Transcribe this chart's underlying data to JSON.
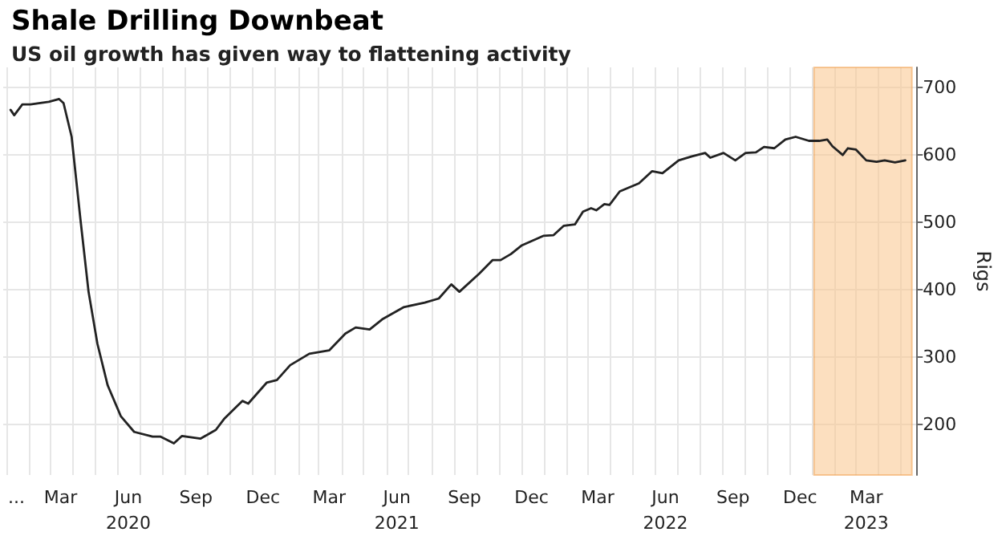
{
  "chart_data": {
    "type": "line",
    "title": "Shale Drilling Downbeat",
    "subtitle": "US oil growth has given way to flattening activity",
    "ylabel": "Rigs",
    "x": [
      "2020-01-07",
      "2020-01-12",
      "2020-01-23",
      "2020-02-03",
      "2020-02-28",
      "2020-03-13",
      "2020-03-19",
      "2020-03-30",
      "2020-04-11",
      "2020-04-22",
      "2020-05-04",
      "2020-05-18",
      "2020-06-05",
      "2020-06-23",
      "2020-07-18",
      "2020-07-29",
      "2020-08-16",
      "2020-08-27",
      "2020-09-21",
      "2020-10-12",
      "2020-10-23",
      "2020-11-17",
      "2020-11-25",
      "2020-12-20",
      "2021-01-03",
      "2021-01-21",
      "2021-02-16",
      "2021-03-15",
      "2021-04-06",
      "2021-04-20",
      "2021-05-09",
      "2021-05-26",
      "2021-06-24",
      "2021-07-23",
      "2021-08-11",
      "2021-08-28",
      "2021-09-08",
      "2021-10-05",
      "2021-10-23",
      "2021-11-03",
      "2021-11-17",
      "2021-12-02",
      "2021-12-31",
      "2022-01-14",
      "2022-01-28",
      "2022-02-12",
      "2022-02-23",
      "2022-03-06",
      "2022-03-13",
      "2022-03-24",
      "2022-03-31",
      "2022-04-14",
      "2022-05-10",
      "2022-05-28",
      "2022-06-11",
      "2022-07-03",
      "2022-07-21",
      "2022-08-08",
      "2022-08-15",
      "2022-09-02",
      "2022-09-18",
      "2022-10-02",
      "2022-10-16",
      "2022-10-27",
      "2022-11-10",
      "2022-11-25",
      "2022-12-09",
      "2022-12-27",
      "2023-01-10",
      "2023-01-21",
      "2023-01-28",
      "2023-02-11",
      "2023-02-18",
      "2023-03-01",
      "2023-03-15",
      "2023-03-29",
      "2023-04-09",
      "2023-04-23",
      "2023-05-07"
    ],
    "series": [
      {
        "color": "#222222",
        "values": [
          667,
          659,
          675,
          675,
          679,
          683,
          677,
          627,
          504,
          397,
          320,
          258,
          212,
          189,
          182,
          182,
          172,
          183,
          179,
          192,
          208,
          235,
          231,
          262,
          266,
          288,
          305,
          310,
          335,
          344,
          341,
          356,
          374,
          381,
          387,
          408,
          397,
          424,
          444,
          444,
          453,
          466,
          480,
          481,
          495,
          497,
          516,
          521,
          518,
          527,
          526,
          546,
          558,
          576,
          573,
          592,
          598,
          603,
          596,
          603,
          592,
          603,
          604,
          612,
          610,
          623,
          627,
          621,
          621,
          623,
          613,
          600,
          610,
          608,
          592,
          590,
          592,
          589,
          592
        ]
      }
    ],
    "xlim": [
      "2019-12-28",
      "2023-05-22"
    ],
    "xticks": [
      {
        "value": "2020-01-15",
        "label": "..."
      },
      {
        "value": "2020-03-15",
        "label": "Mar"
      },
      {
        "value": "2020-06-15",
        "label": "Jun\n2020"
      },
      {
        "value": "2020-09-15",
        "label": "Sep"
      },
      {
        "value": "2020-12-15",
        "label": "Dec"
      },
      {
        "value": "2021-03-15",
        "label": "Mar"
      },
      {
        "value": "2021-06-15",
        "label": "Jun\n2021"
      },
      {
        "value": "2021-09-15",
        "label": "Sep"
      },
      {
        "value": "2021-12-15",
        "label": "Dec"
      },
      {
        "value": "2022-03-15",
        "label": "Mar"
      },
      {
        "value": "2022-06-15",
        "label": "Jun\n2022"
      },
      {
        "value": "2022-09-15",
        "label": "Sep"
      },
      {
        "value": "2022-12-15",
        "label": "Dec"
      },
      {
        "value": "2023-03-15",
        "label": "Mar\n2023"
      },
      {
        "value": "2020-01-01",
        "label": null
      },
      {
        "value": "2020-02-01",
        "label": null
      },
      {
        "value": "2020-03-01",
        "label": null
      },
      {
        "value": "2020-04-01",
        "label": null
      },
      {
        "value": "2020-05-01",
        "label": null
      },
      {
        "value": "2020-06-01",
        "label": null
      },
      {
        "value": "2020-07-01",
        "label": null
      },
      {
        "value": "2020-08-01",
        "label": null
      },
      {
        "value": "2020-09-01",
        "label": null
      },
      {
        "value": "2020-10-01",
        "label": null
      },
      {
        "value": "2020-11-01",
        "label": null
      },
      {
        "value": "2020-12-01",
        "label": null
      },
      {
        "value": "2021-01-01",
        "label": null
      },
      {
        "value": "2021-02-01",
        "label": null
      },
      {
        "value": "2021-03-01",
        "label": null
      },
      {
        "value": "2021-04-01",
        "label": null
      },
      {
        "value": "2021-05-01",
        "label": null
      },
      {
        "value": "2021-06-01",
        "label": null
      },
      {
        "value": "2021-07-01",
        "label": null
      },
      {
        "value": "2021-08-01",
        "label": null
      },
      {
        "value": "2021-09-01",
        "label": null
      },
      {
        "value": "2021-10-01",
        "label": null
      },
      {
        "value": "2021-11-01",
        "label": null
      },
      {
        "value": "2021-12-01",
        "label": null
      },
      {
        "value": "2022-01-01",
        "label": null
      },
      {
        "value": "2022-02-01",
        "label": null
      },
      {
        "value": "2022-03-01",
        "label": null
      },
      {
        "value": "2022-04-01",
        "label": null
      },
      {
        "value": "2022-05-01",
        "label": null
      },
      {
        "value": "2022-06-01",
        "label": null
      },
      {
        "value": "2022-07-01",
        "label": null
      },
      {
        "value": "2022-08-01",
        "label": null
      },
      {
        "value": "2022-09-01",
        "label": null
      },
      {
        "value": "2022-10-01",
        "label": null
      },
      {
        "value": "2022-11-01",
        "label": null
      },
      {
        "value": "2022-12-01",
        "label": null
      },
      {
        "value": "2023-01-01",
        "label": null
      },
      {
        "value": "2023-02-01",
        "label": null
      },
      {
        "value": "2023-03-01",
        "label": null
      },
      {
        "value": "2023-04-01",
        "label": null
      },
      {
        "value": "2023-05-01",
        "label": null
      }
    ],
    "ylim": [
      125,
      730
    ],
    "yticks": [
      200,
      300,
      400,
      500,
      600,
      700
    ],
    "bands": [
      {
        "axis": "x",
        "from": "2023-01-03",
        "to": "2023-05-16",
        "color": "#f9c48a"
      }
    ],
    "grid": true,
    "marker": "none",
    "line_style": "solid"
  }
}
